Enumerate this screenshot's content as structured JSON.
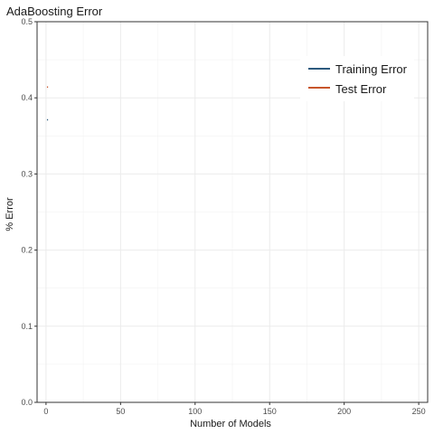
{
  "chart_data": {
    "type": "line",
    "title": "AdaBoosting Error",
    "xlabel": "Number of Models",
    "ylabel": "% Error",
    "xlim": [
      -6,
      256
    ],
    "ylim": [
      0,
      0.5
    ],
    "x_ticks": [
      0,
      50,
      100,
      150,
      200,
      250
    ],
    "y_ticks": [
      0.0,
      0.1,
      0.2,
      0.3,
      0.4,
      0.5
    ],
    "x_tick_labels": [
      "0",
      "50",
      "100",
      "150",
      "200",
      "250"
    ],
    "y_tick_labels": [
      "0.0",
      "0.1",
      "0.2",
      "0.3",
      "0.4",
      "0.5"
    ],
    "grid": true,
    "legend_position": "top-right",
    "series": [
      {
        "name": "Training Error",
        "color": "#2c5a7e",
        "x": [
          1,
          1
        ],
        "y": [
          0.372,
          0.371
        ]
      },
      {
        "name": "Test Error",
        "color": "#c8552b",
        "x": [
          1,
          1
        ],
        "y": [
          0.415,
          0.414
        ]
      }
    ]
  }
}
